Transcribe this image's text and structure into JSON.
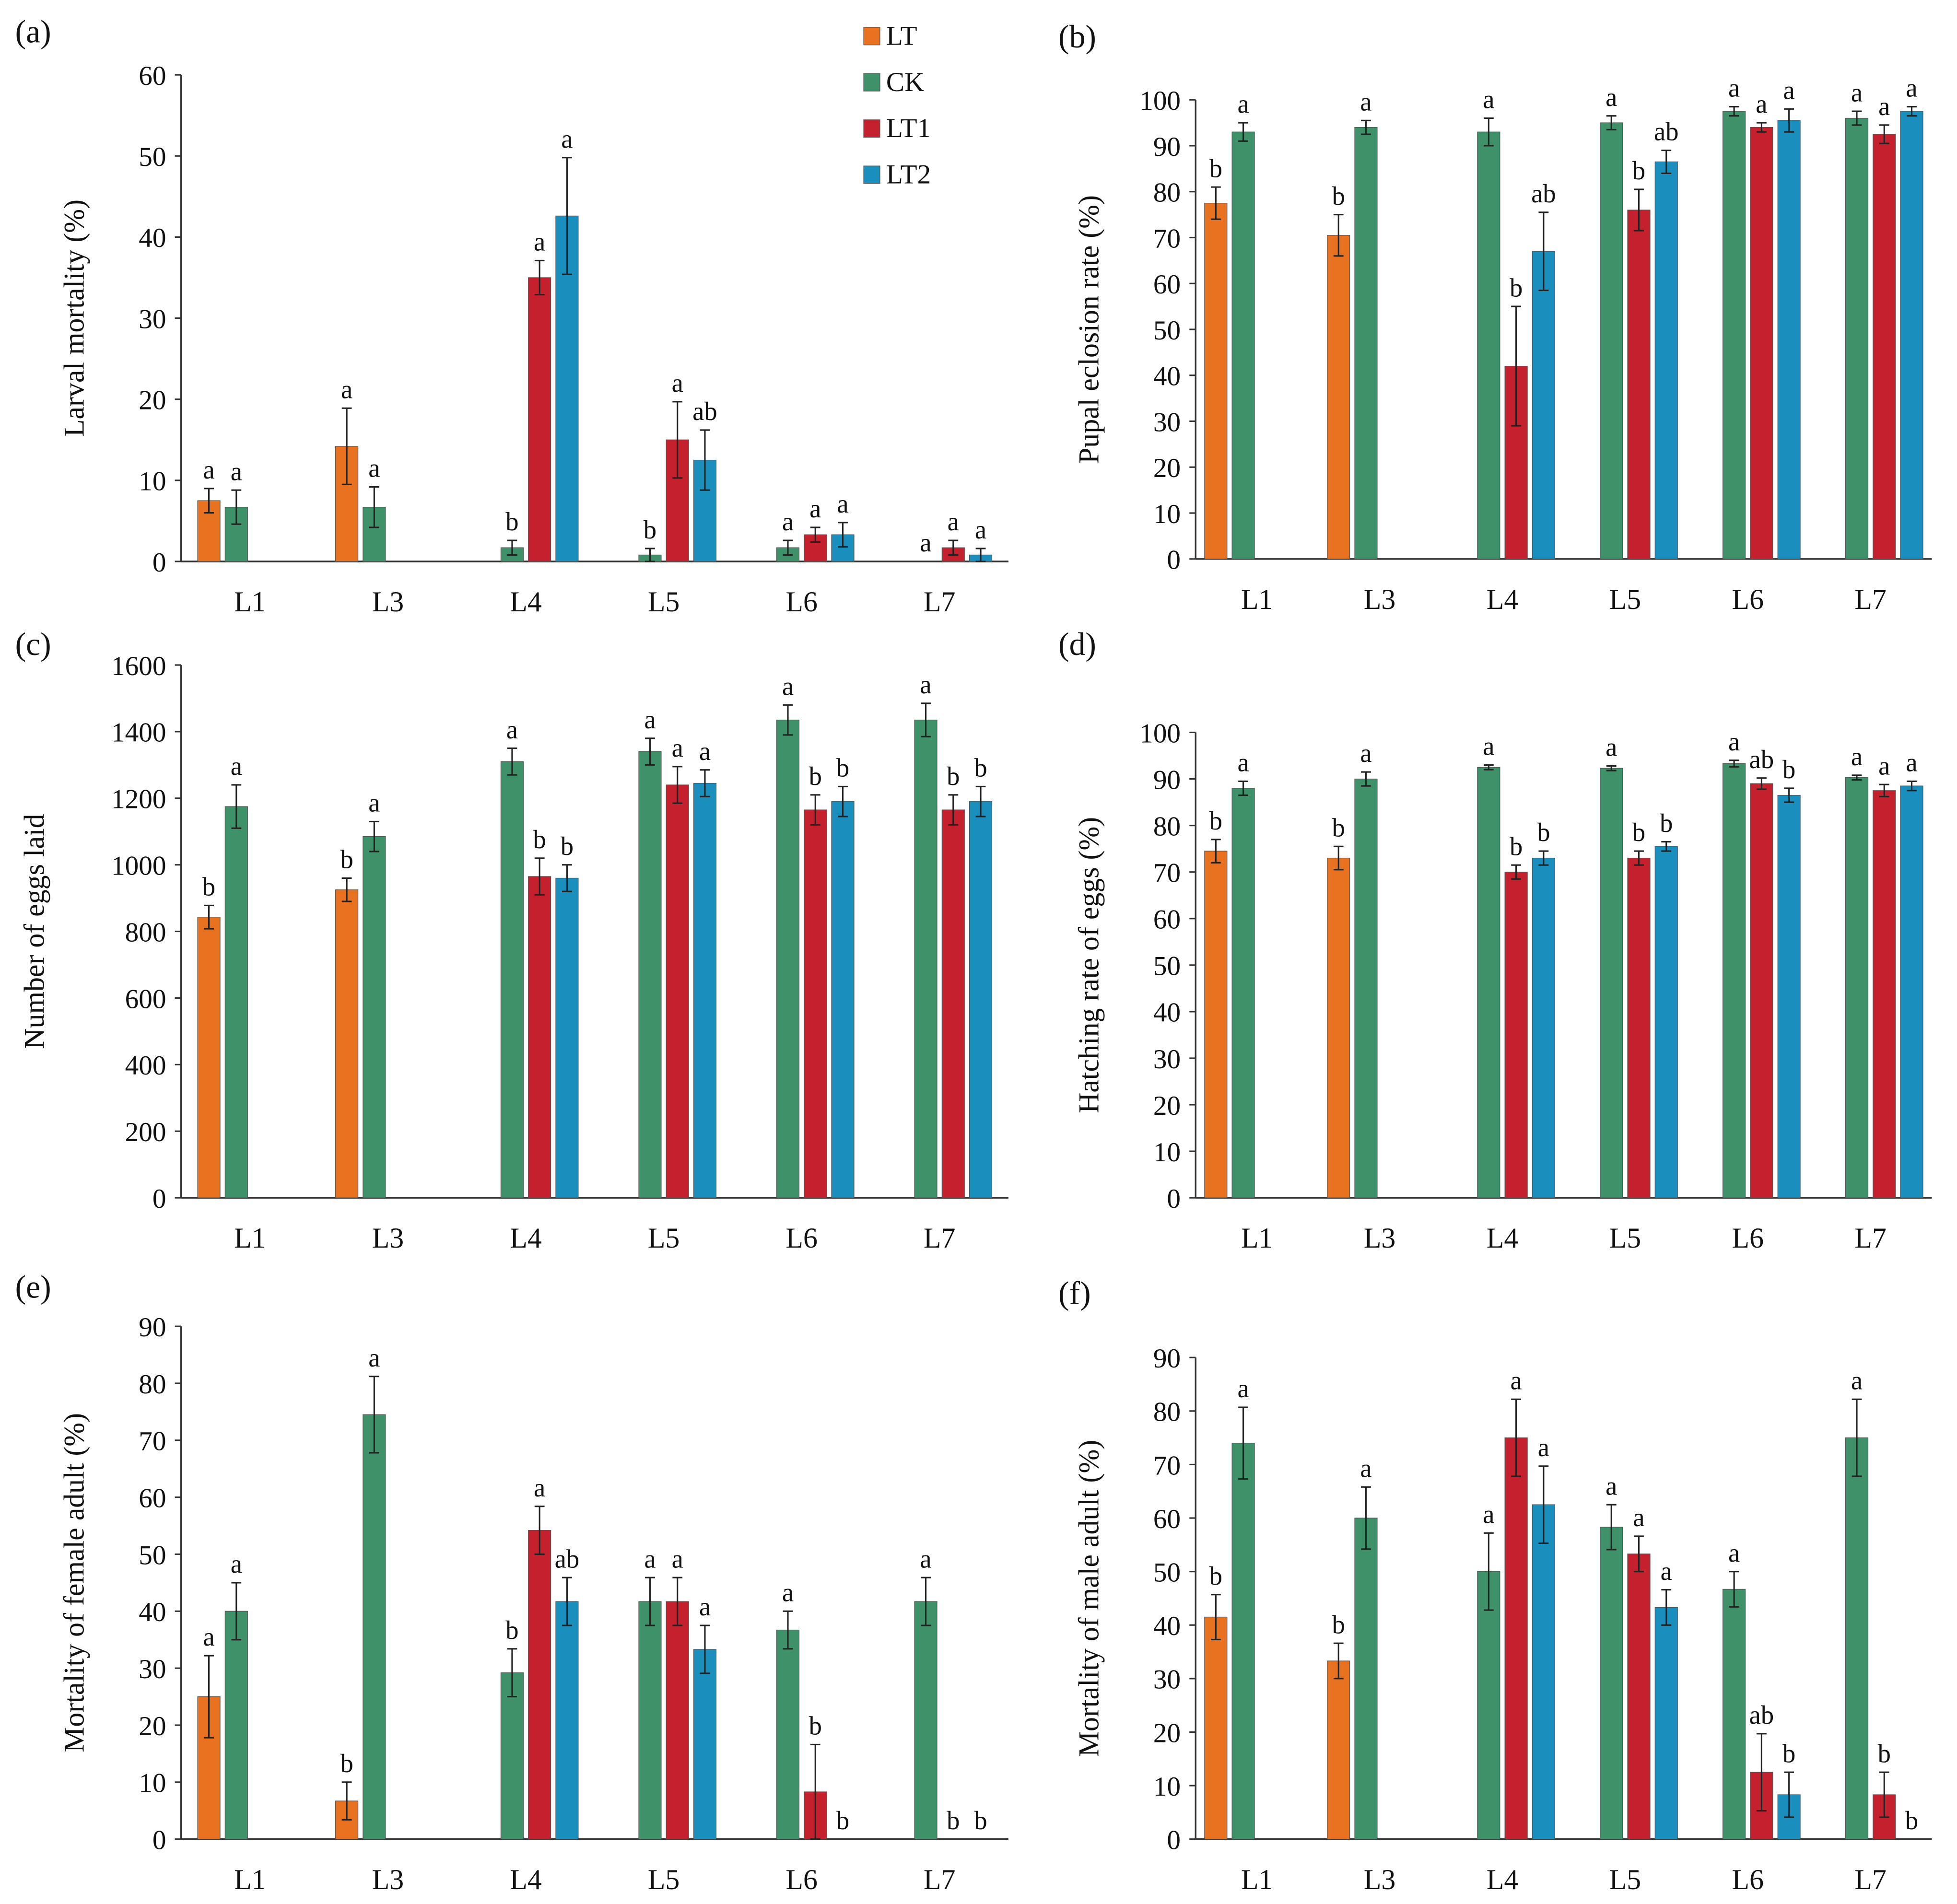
{
  "colors": {
    "LT": "#e8721f",
    "CK": "#3f9169",
    "LT1": "#c4202e",
    "LT2": "#1a8fbd"
  },
  "chart_data": [
    {
      "type": "bar",
      "title": "(a)",
      "ylabel": "Larval mortality  (%)",
      "ylim": [
        0,
        60
      ],
      "yticks": [
        "0",
        "10",
        "20",
        "30",
        "40",
        "50",
        "60"
      ],
      "categories": [
        "L1",
        "L3",
        "L4",
        "L5",
        "L6",
        "L7"
      ],
      "series": [
        {
          "name": "LT",
          "values": [
            7.5,
            14.2,
            null,
            null,
            null,
            null
          ],
          "errors": [
            1.5,
            4.7,
            null,
            null,
            null,
            null
          ],
          "letters": [
            "a",
            "a",
            "",
            "",
            "",
            ""
          ]
        },
        {
          "name": "CK",
          "values": [
            6.7,
            6.7,
            1.7,
            0.8,
            1.7,
            0
          ],
          "errors": [
            2.1,
            2.5,
            0.9,
            0.8,
            0.9,
            0
          ],
          "letters": [
            "a",
            "a",
            "b",
            "b",
            "a",
            "a"
          ]
        },
        {
          "name": "LT1",
          "values": [
            null,
            null,
            35,
            15,
            3.3,
            1.7
          ],
          "errors": [
            null,
            null,
            2.1,
            4.7,
            0.9,
            0.9
          ],
          "letters": [
            "",
            "",
            "a",
            "a",
            "a",
            "a"
          ]
        },
        {
          "name": "LT2",
          "values": [
            null,
            null,
            42.6,
            12.5,
            3.3,
            0.8
          ],
          "errors": [
            null,
            null,
            7.2,
            3.7,
            1.5,
            0.8
          ],
          "letters": [
            "",
            "",
            "a",
            "ab",
            "a",
            "a"
          ]
        }
      ]
    },
    {
      "type": "bar",
      "title": "(b)",
      "ylabel": "Pupal eclosion rate (%)",
      "ylim": [
        0,
        100
      ],
      "yticks": [
        "0",
        "10",
        "20",
        "30",
        "40",
        "50",
        "60",
        "70",
        "80",
        "90",
        "100"
      ],
      "categories": [
        "L1",
        "L3",
        "L4",
        "L5",
        "L6",
        "L7"
      ],
      "series": [
        {
          "name": "LT",
          "values": [
            77.5,
            70.5,
            null,
            null,
            null,
            null
          ],
          "errors": [
            3.5,
            4.5,
            null,
            null,
            null,
            null
          ],
          "letters": [
            "b",
            "b",
            "",
            "",
            "",
            ""
          ]
        },
        {
          "name": "CK",
          "values": [
            93,
            94,
            93,
            95,
            97.5,
            96
          ],
          "errors": [
            2,
            1.5,
            3,
            1.5,
            1,
            1.5
          ],
          "letters": [
            "a",
            "a",
            "a",
            "a",
            "a",
            "a"
          ]
        },
        {
          "name": "LT1",
          "values": [
            null,
            null,
            42,
            76,
            94,
            92.5
          ],
          "errors": [
            null,
            null,
            13,
            4.5,
            1,
            2
          ],
          "letters": [
            "",
            "",
            "b",
            "b",
            "a",
            "a"
          ]
        },
        {
          "name": "LT2",
          "values": [
            null,
            null,
            67,
            86.5,
            95.5,
            97.5
          ],
          "errors": [
            null,
            null,
            8.5,
            2.5,
            2.5,
            1
          ],
          "letters": [
            "",
            "",
            "ab",
            "ab",
            "a",
            "a"
          ]
        }
      ]
    },
    {
      "type": "bar",
      "title": "(c)",
      "ylabel": "Number of eggs laid",
      "ylim": [
        0,
        1600
      ],
      "yticks": [
        "0",
        "200",
        "400",
        "600",
        "800",
        "1000",
        "1200",
        "1400",
        "1600"
      ],
      "categories": [
        "L1",
        "L3",
        "L4",
        "L5",
        "L6",
        "L7"
      ],
      "series": [
        {
          "name": "LT",
          "values": [
            843,
            925,
            null,
            null,
            null,
            null
          ],
          "errors": [
            35,
            35,
            null,
            null,
            null,
            null
          ],
          "letters": [
            "b",
            "b",
            "",
            "",
            "",
            ""
          ]
        },
        {
          "name": "CK",
          "values": [
            1175,
            1085,
            1310,
            1340,
            1435,
            1435
          ],
          "errors": [
            65,
            45,
            40,
            40,
            45,
            50
          ],
          "letters": [
            "a",
            "a",
            "a",
            "a",
            "a",
            "a"
          ]
        },
        {
          "name": "LT1",
          "values": [
            null,
            null,
            965,
            1240,
            1165,
            1165
          ],
          "errors": [
            null,
            null,
            55,
            55,
            45,
            45
          ],
          "letters": [
            "",
            "",
            "b",
            "a",
            "b",
            "b"
          ]
        },
        {
          "name": "LT2",
          "values": [
            null,
            null,
            960,
            1245,
            1190,
            1190
          ],
          "errors": [
            null,
            null,
            40,
            40,
            45,
            45
          ],
          "letters": [
            "",
            "",
            "b",
            "a",
            "b",
            "b"
          ]
        }
      ]
    },
    {
      "type": "bar",
      "title": "(d)",
      "ylabel": "Hatching rate of eggs (%)",
      "ylim": [
        0,
        100
      ],
      "yticks": [
        "0",
        "10",
        "20",
        "30",
        "40",
        "50",
        "60",
        "70",
        "80",
        "90",
        "100"
      ],
      "categories": [
        "L1",
        "L3",
        "L4",
        "L5",
        "L6",
        "L7"
      ],
      "series": [
        {
          "name": "LT",
          "values": [
            74.5,
            73,
            null,
            null,
            null,
            null
          ],
          "errors": [
            2.5,
            2.5,
            null,
            null,
            null,
            null
          ],
          "letters": [
            "b",
            "b",
            "",
            "",
            "",
            ""
          ]
        },
        {
          "name": "CK",
          "values": [
            88,
            90,
            92.5,
            92.3,
            93.3,
            90.3
          ],
          "errors": [
            1.5,
            1.5,
            0.5,
            0.5,
            0.7,
            0.5
          ],
          "letters": [
            "a",
            "a",
            "a",
            "a",
            "a",
            "a"
          ]
        },
        {
          "name": "LT1",
          "values": [
            null,
            null,
            70,
            73,
            89,
            87.5
          ],
          "errors": [
            null,
            null,
            1.5,
            1.5,
            1.2,
            1.3
          ],
          "letters": [
            "",
            "",
            "b",
            "b",
            "ab",
            "a"
          ]
        },
        {
          "name": "LT2",
          "values": [
            null,
            null,
            73,
            75.5,
            86.5,
            88.5
          ],
          "errors": [
            null,
            null,
            1.5,
            1,
            1.5,
            1
          ],
          "letters": [
            "",
            "",
            "b",
            "b",
            "b",
            "a"
          ]
        }
      ]
    },
    {
      "type": "bar",
      "title": "(e)",
      "ylabel": "Mortality of female adult (%)",
      "ylim": [
        0,
        90
      ],
      "yticks": [
        "0",
        "10",
        "20",
        "30",
        "40",
        "50",
        "60",
        "70",
        "80",
        "90"
      ],
      "categories": [
        "L1",
        "L3",
        "L4",
        "L5",
        "L6",
        "L7"
      ],
      "series": [
        {
          "name": "LT",
          "values": [
            25,
            6.7,
            null,
            null,
            null,
            null
          ],
          "errors": [
            7.2,
            3.3,
            null,
            null,
            null,
            null
          ],
          "letters": [
            "a",
            "b",
            "",
            "",
            "",
            ""
          ]
        },
        {
          "name": "CK",
          "values": [
            40,
            74.5,
            29.2,
            41.7,
            36.7,
            41.7
          ],
          "errors": [
            5,
            6.7,
            4.2,
            4.2,
            3.3,
            4.2
          ],
          "letters": [
            "a",
            "a",
            "b",
            "a",
            "a",
            "a"
          ]
        },
        {
          "name": "LT1",
          "values": [
            null,
            null,
            54.2,
            41.7,
            8.3,
            0
          ],
          "errors": [
            null,
            null,
            4.2,
            4.2,
            8.3,
            0
          ],
          "letters": [
            "",
            "",
            "a",
            "a",
            "b",
            "b"
          ]
        },
        {
          "name": "LT2",
          "values": [
            null,
            null,
            41.7,
            33.3,
            0,
            0
          ],
          "errors": [
            null,
            null,
            4.2,
            4.2,
            0,
            0
          ],
          "letters": [
            "",
            "",
            "ab",
            "a",
            "b",
            "b"
          ]
        }
      ]
    },
    {
      "type": "bar",
      "title": "(f)",
      "ylabel": "Mortality of male adult (%)",
      "ylim": [
        0,
        90
      ],
      "yticks": [
        "0",
        "10",
        "20",
        "30",
        "40",
        "50",
        "60",
        "70",
        "80",
        "90"
      ],
      "categories": [
        "L1",
        "L3",
        "L4",
        "L5",
        "L6",
        "L7"
      ],
      "series": [
        {
          "name": "LT",
          "values": [
            41.5,
            33.3,
            null,
            null,
            null,
            null
          ],
          "errors": [
            4.2,
            3.3,
            null,
            null,
            null,
            null
          ],
          "letters": [
            "b",
            "b",
            "",
            "",
            "",
            ""
          ]
        },
        {
          "name": "CK",
          "values": [
            74,
            60,
            50,
            58.3,
            46.7,
            75
          ],
          "errors": [
            6.7,
            5.8,
            7.2,
            4.2,
            3.3,
            7.2
          ],
          "letters": [
            "a",
            "a",
            "a",
            "a",
            "a",
            "a"
          ]
        },
        {
          "name": "LT1",
          "values": [
            null,
            null,
            75,
            53.3,
            12.5,
            8.3
          ],
          "errors": [
            null,
            null,
            7.2,
            3.3,
            7.2,
            4.2
          ],
          "letters": [
            "",
            "",
            "a",
            "a",
            "ab",
            "b"
          ]
        },
        {
          "name": "LT2",
          "values": [
            null,
            null,
            62.5,
            43.3,
            8.3,
            0
          ],
          "errors": [
            null,
            null,
            7.2,
            3.3,
            4.2,
            0
          ],
          "letters": [
            "",
            "",
            "a",
            "a",
            "b",
            "b"
          ]
        }
      ]
    }
  ]
}
